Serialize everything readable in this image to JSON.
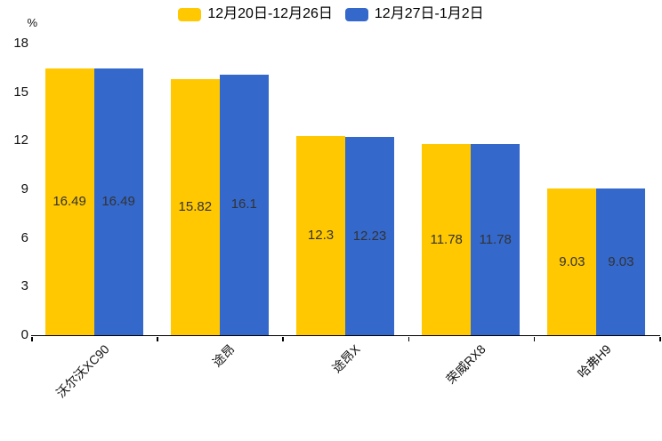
{
  "chart_data": {
    "type": "bar",
    "title": "",
    "unit": "%",
    "categories": [
      "沃尔沃XC90",
      "途昂",
      "途昂X",
      "荣威RX8",
      "哈弗H9"
    ],
    "series": [
      {
        "name": "12月20日-12月26日",
        "color": "#FFC800",
        "values": [
          16.49,
          15.82,
          12.3,
          11.78,
          9.03
        ]
      },
      {
        "name": "12月27日-1月2日",
        "color": "#3468CB",
        "values": [
          16.49,
          16.1,
          12.23,
          11.78,
          9.03
        ]
      }
    ],
    "ylim": [
      0,
      18
    ],
    "yticks": [
      0,
      3,
      6,
      9,
      12,
      15,
      18
    ],
    "legend_position": "top",
    "grid": false,
    "value_labels_shown": true,
    "value_label_color": "#333333"
  }
}
